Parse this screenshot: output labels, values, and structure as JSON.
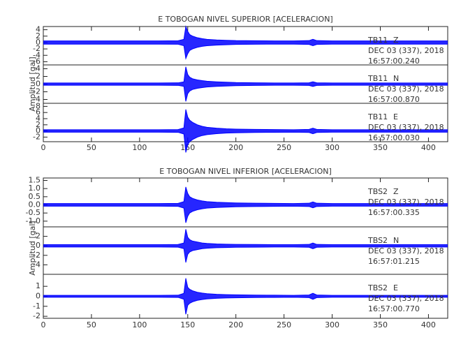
{
  "chart_data": [
    {
      "type": "envelope",
      "title": "E TOBOGAN NIVEL SUPERIOR [ACELERACION]",
      "ylabel": "Amplitud [gal]",
      "xlim": [
        0,
        420
      ],
      "xticks": [
        0,
        50,
        100,
        150,
        200,
        250,
        300,
        350,
        400
      ],
      "x": [
        0,
        20,
        40,
        60,
        80,
        100,
        120,
        140,
        146,
        148,
        150,
        152,
        155,
        160,
        165,
        170,
        180,
        190,
        200,
        220,
        240,
        260,
        276,
        280,
        284,
        300,
        320,
        340,
        360,
        380,
        400,
        420
      ],
      "traces": [
        {
          "station": "TB11",
          "component": "Z",
          "date": "DEC 03 (337), 2018",
          "time": "16:57:00.240",
          "color": "#0000ff",
          "ylim": [
            -7,
            5
          ],
          "yticks": [
            -6,
            -4,
            -2,
            0,
            2,
            4
          ],
          "values": [
            0.5,
            0.5,
            0.5,
            0.5,
            0.5,
            0.5,
            0.5,
            0.55,
            1,
            5,
            3.5,
            2.5,
            2,
            1.5,
            1.2,
            1,
            0.8,
            0.7,
            0.6,
            0.55,
            0.5,
            0.5,
            0.6,
            1,
            0.6,
            0.5,
            0.5,
            0.5,
            0.5,
            0.5,
            0.5,
            0.5
          ]
        },
        {
          "station": "TB11",
          "component": "N",
          "date": "DEC 03 (337), 2018",
          "time": "16:57:00.870",
          "color": "#0000ff",
          "ylim": [
            -5,
            5
          ],
          "yticks": [
            -4,
            -2,
            0,
            2,
            4
          ],
          "values": [
            0.3,
            0.3,
            0.3,
            0.3,
            0.3,
            0.3,
            0.3,
            0.33,
            0.6,
            4.5,
            2.5,
            1.8,
            1.4,
            1.1,
            0.9,
            0.75,
            0.6,
            0.5,
            0.4,
            0.35,
            0.3,
            0.3,
            0.35,
            0.6,
            0.35,
            0.3,
            0.3,
            0.3,
            0.3,
            0.3,
            0.3,
            0.3
          ]
        },
        {
          "station": "TB11",
          "component": "E",
          "date": "DEC 03 (337), 2018",
          "time": "16:57:00.030",
          "color": "#0000ff",
          "ylim": [
            -3.5,
            9
          ],
          "yticks": [
            -2,
            0,
            2,
            4,
            6,
            8
          ],
          "values": [
            0.4,
            0.4,
            0.4,
            0.4,
            0.4,
            0.4,
            0.4,
            0.45,
            1,
            7,
            4.5,
            3.5,
            2.8,
            2,
            1.5,
            1.2,
            0.9,
            0.7,
            0.6,
            0.5,
            0.45,
            0.4,
            0.5,
            0.9,
            0.5,
            0.4,
            0.4,
            0.4,
            0.4,
            0.4,
            0.4,
            0.4
          ]
        }
      ]
    },
    {
      "type": "envelope",
      "title": "E TOBOGAN NIVEL INFERIOR [ACELERACION]",
      "ylabel": "Amplitud [gal]",
      "xlim": [
        0,
        420
      ],
      "xticks": [
        0,
        50,
        100,
        150,
        200,
        250,
        300,
        350,
        400
      ],
      "x": [
        0,
        20,
        40,
        60,
        80,
        100,
        120,
        140,
        146,
        148,
        150,
        152,
        155,
        160,
        165,
        170,
        180,
        190,
        200,
        220,
        240,
        260,
        276,
        280,
        284,
        300,
        320,
        340,
        360,
        380,
        400,
        420
      ],
      "traces": [
        {
          "station": "TBS2",
          "component": "Z",
          "date": "DEC 03 (337), 2018",
          "time": "16:57:00.335",
          "color": "#0000ff",
          "ylim": [
            -1.35,
            1.65
          ],
          "yticks": [
            {
              "value": -1,
              "label": "-1.0"
            },
            -0.5,
            {
              "value": 0,
              "label": "0.0"
            },
            0.5,
            {
              "value": 1,
              "label": "1.0"
            },
            1.5
          ],
          "values": [
            0.08,
            0.08,
            0.08,
            0.08,
            0.08,
            0.08,
            0.08,
            0.09,
            0.2,
            1.1,
            0.7,
            0.5,
            0.4,
            0.3,
            0.24,
            0.2,
            0.16,
            0.14,
            0.12,
            0.1,
            0.09,
            0.08,
            0.1,
            0.18,
            0.1,
            0.08,
            0.08,
            0.08,
            0.08,
            0.08,
            0.08,
            0.08
          ]
        },
        {
          "station": "TBS2",
          "component": "N",
          "date": "DEC 03 (337), 2018",
          "time": "16:57:01.215",
          "color": "#0000ff",
          "ylim": [
            -6,
            4
          ],
          "yticks": [
            -4,
            -2,
            0,
            2
          ],
          "values": [
            0.25,
            0.25,
            0.25,
            0.25,
            0.25,
            0.25,
            0.25,
            0.28,
            0.6,
            3.5,
            1.8,
            1.3,
            1,
            0.8,
            0.6,
            0.5,
            0.4,
            0.35,
            0.3,
            0.28,
            0.25,
            0.25,
            0.3,
            0.6,
            0.3,
            0.25,
            0.25,
            0.25,
            0.25,
            0.25,
            0.25,
            0.25
          ]
        },
        {
          "station": "TBS2",
          "component": "E",
          "date": "DEC 03 (337), 2018",
          "time": "16:57:00.770",
          "color": "#0000ff",
          "ylim": [
            -2.2,
            2.2
          ],
          "yticks": [
            -2,
            -1,
            0,
            1
          ],
          "values": [
            0.1,
            0.1,
            0.1,
            0.1,
            0.1,
            0.1,
            0.1,
            0.11,
            0.3,
            1.8,
            0.9,
            0.7,
            0.55,
            0.4,
            0.32,
            0.26,
            0.2,
            0.17,
            0.15,
            0.12,
            0.11,
            0.1,
            0.13,
            0.3,
            0.13,
            0.1,
            0.1,
            0.1,
            0.1,
            0.1,
            0.1,
            0.1
          ]
        }
      ]
    }
  ]
}
